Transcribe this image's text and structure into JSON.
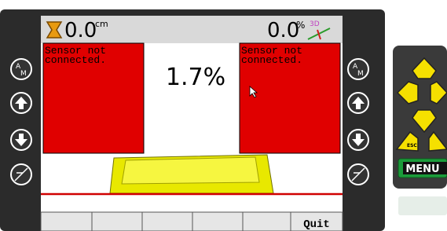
{
  "top_bar": {
    "depth_value": "0.0",
    "depth_unit": "cm",
    "slope_value": "0.0",
    "slope_unit": "%",
    "mode_icon": "3D"
  },
  "left_panel": {
    "message": "Sensor not connected."
  },
  "center": {
    "value": "1.7%"
  },
  "right_panel": {
    "message": "Sensor not connected."
  },
  "side_buttons": {
    "left_auto": "A",
    "left_manual": "M",
    "right_auto": "A",
    "right_manual": "M"
  },
  "softkeys": {
    "quit": "Quit"
  },
  "keypad": {
    "esc": "ESC",
    "menu": "MENU"
  }
}
